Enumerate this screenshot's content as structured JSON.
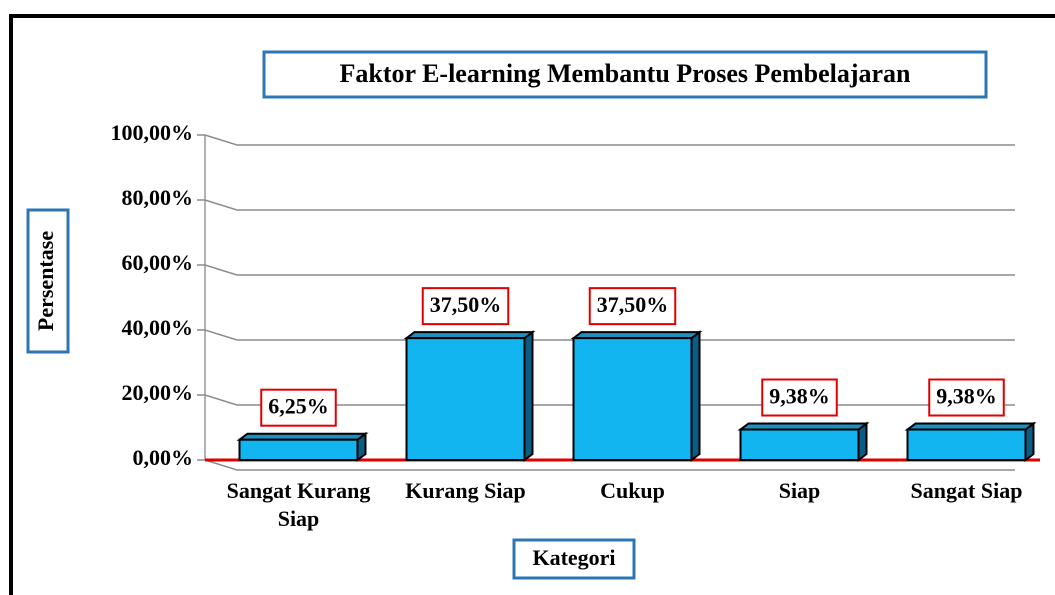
{
  "chart_data": {
    "type": "bar",
    "title": "Faktor E-learning Membantu Proses Pembelajaran",
    "xlabel": "Kategori",
    "ylabel": "Persentase",
    "categories": [
      "Sangat Kurang Siap",
      "Kurang Siap",
      "Cukup",
      "Siap",
      "Sangat Siap"
    ],
    "values": [
      6.25,
      37.5,
      37.5,
      9.38,
      9.38
    ],
    "value_labels": [
      "6,25%",
      "37,50%",
      "37,50%",
      "9,38%",
      "9,38%"
    ],
    "color": "#12b5f0",
    "ylim": [
      0,
      100
    ],
    "yticks": [
      {
        "value": 0,
        "label": "0,00%"
      },
      {
        "value": 20,
        "label": "20,00%"
      },
      {
        "value": 40,
        "label": "40,00%"
      },
      {
        "value": 60,
        "label": "60,00%"
      },
      {
        "value": 80,
        "label": "80,00%"
      },
      {
        "value": 100,
        "label": "100,00%"
      }
    ],
    "grid": true
  }
}
